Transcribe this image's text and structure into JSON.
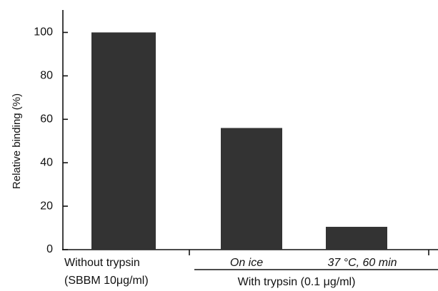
{
  "chart_data": {
    "type": "bar",
    "y_label": "Relative binding (%)",
    "categories": [
      [
        "Without trypsin",
        "(SBBM 10μg/ml)"
      ],
      [
        "On ice"
      ],
      [
        "37 °C, 60 min"
      ]
    ],
    "values": [
      100,
      56,
      10.5
    ],
    "color": "#333333",
    "group_label": "With trypsin (0.1 μg/ml)",
    "ylim": [
      0,
      110
    ],
    "yticks": [
      0,
      20,
      40,
      60,
      80,
      100
    ],
    "grid": false
  }
}
